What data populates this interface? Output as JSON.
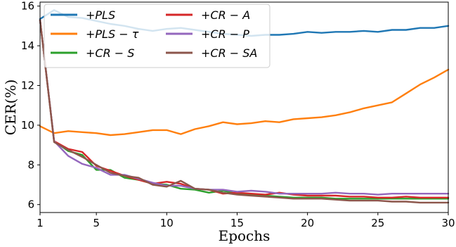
{
  "chart_data": {
    "type": "line",
    "xlabel": "Epochs",
    "ylabel": "CER(%)",
    "xlim": [
      1,
      30
    ],
    "ylim": [
      5.6,
      16.2
    ],
    "xticks": [
      1,
      5,
      10,
      15,
      20,
      25,
      30
    ],
    "yticks": [
      6,
      8,
      10,
      12,
      14,
      16
    ],
    "grid": false,
    "legend_placement": "top-left",
    "legend_columns": 2,
    "x": [
      1,
      2,
      3,
      4,
      5,
      6,
      7,
      8,
      9,
      10,
      11,
      12,
      13,
      14,
      15,
      16,
      17,
      18,
      19,
      20,
      21,
      22,
      23,
      24,
      25,
      26,
      27,
      28,
      29,
      30
    ],
    "series": [
      {
        "name": "+PLS",
        "color": "#1f77b4",
        "values": [
          15.35,
          15.8,
          15.45,
          15.4,
          15.25,
          15.1,
          15.0,
          14.85,
          14.75,
          14.85,
          14.9,
          14.8,
          14.7,
          14.6,
          14.55,
          14.5,
          14.55,
          14.55,
          14.6,
          14.7,
          14.65,
          14.7,
          14.7,
          14.75,
          14.7,
          14.8,
          14.8,
          14.9,
          14.9,
          15.0
        ]
      },
      {
        "name": "+PLS − τ",
        "color": "#ff7f0e",
        "values": [
          9.95,
          9.6,
          9.7,
          9.65,
          9.6,
          9.5,
          9.55,
          9.65,
          9.75,
          9.75,
          9.55,
          9.8,
          9.95,
          10.15,
          10.05,
          10.1,
          10.2,
          10.15,
          10.3,
          10.35,
          10.4,
          10.5,
          10.65,
          10.85,
          11.0,
          11.15,
          11.6,
          12.05,
          12.4,
          12.8
        ]
      },
      {
        "name": "+CR − S",
        "color": "#2ca02c",
        "values": [
          15.3,
          9.2,
          8.7,
          8.5,
          7.75,
          7.75,
          7.35,
          7.25,
          7.05,
          7.0,
          6.8,
          6.75,
          6.6,
          6.7,
          6.55,
          6.5,
          6.45,
          6.4,
          6.35,
          6.35,
          6.35,
          6.3,
          6.3,
          6.3,
          6.3,
          6.3,
          6.3,
          6.3,
          6.3,
          6.3
        ]
      },
      {
        "name": "+CR − A",
        "color": "#d62728",
        "values": [
          15.3,
          9.2,
          8.8,
          8.65,
          7.95,
          7.7,
          7.45,
          7.25,
          7.05,
          7.15,
          7.05,
          6.8,
          6.75,
          6.55,
          6.6,
          6.55,
          6.5,
          6.6,
          6.5,
          6.45,
          6.45,
          6.45,
          6.4,
          6.4,
          6.35,
          6.35,
          6.4,
          6.35,
          6.35,
          6.35
        ]
      },
      {
        "name": "+CR − P",
        "color": "#9467bd",
        "values": [
          15.3,
          9.2,
          8.45,
          8.05,
          7.85,
          7.5,
          7.5,
          7.3,
          7.1,
          6.95,
          6.95,
          6.8,
          6.75,
          6.75,
          6.65,
          6.7,
          6.65,
          6.55,
          6.55,
          6.55,
          6.55,
          6.6,
          6.55,
          6.55,
          6.5,
          6.55,
          6.55,
          6.55,
          6.55,
          6.55
        ]
      },
      {
        "name": "+CR − SA",
        "color": "#8c564b",
        "values": [
          15.3,
          9.15,
          8.75,
          8.4,
          8.0,
          7.6,
          7.45,
          7.35,
          7.0,
          6.9,
          7.2,
          6.8,
          6.75,
          6.6,
          6.5,
          6.45,
          6.4,
          6.35,
          6.3,
          6.3,
          6.3,
          6.25,
          6.2,
          6.2,
          6.2,
          6.15,
          6.15,
          6.1,
          6.1,
          6.1
        ]
      }
    ]
  }
}
